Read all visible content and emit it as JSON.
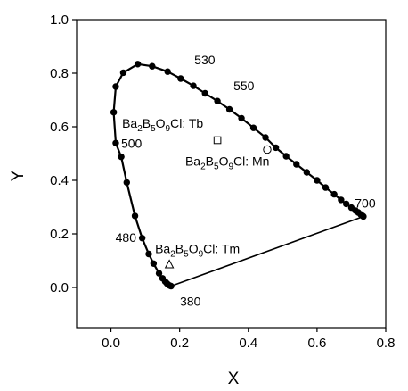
{
  "chart_data": {
    "type": "scatter",
    "title": "",
    "xlabel": "X",
    "ylabel": "Y",
    "xlim": [
      -0.1,
      0.8
    ],
    "ylim": [
      -0.15,
      1.0
    ],
    "xticks": [
      "0.0",
      "0.2",
      "0.4",
      "0.6",
      "0.8"
    ],
    "yticks": [
      "0.0",
      "0.2",
      "0.4",
      "0.6",
      "0.8",
      "1.0"
    ],
    "grid": false,
    "series": [
      {
        "kind": "locus",
        "marker": "filled-circle",
        "points": [
          [
            0.175,
            0.005
          ],
          [
            0.171,
            0.007
          ],
          [
            0.167,
            0.01
          ],
          [
            0.163,
            0.015
          ],
          [
            0.158,
            0.022
          ],
          [
            0.15,
            0.034
          ],
          [
            0.14,
            0.053
          ],
          [
            0.124,
            0.089
          ],
          [
            0.11,
            0.125
          ],
          [
            0.091,
            0.184
          ],
          [
            0.07,
            0.267
          ],
          [
            0.046,
            0.392
          ],
          [
            0.03,
            0.488
          ],
          [
            0.014,
            0.539
          ],
          [
            0.008,
            0.654
          ],
          [
            0.014,
            0.75
          ],
          [
            0.036,
            0.802
          ],
          [
            0.078,
            0.834
          ],
          [
            0.12,
            0.826
          ],
          [
            0.165,
            0.806
          ],
          [
            0.203,
            0.78
          ],
          [
            0.24,
            0.753
          ],
          [
            0.274,
            0.725
          ],
          [
            0.31,
            0.696
          ],
          [
            0.345,
            0.665
          ],
          [
            0.38,
            0.632
          ],
          [
            0.415,
            0.596
          ],
          [
            0.45,
            0.56
          ],
          [
            0.48,
            0.522
          ],
          [
            0.51,
            0.49
          ],
          [
            0.54,
            0.46
          ],
          [
            0.57,
            0.43
          ],
          [
            0.6,
            0.4
          ],
          [
            0.625,
            0.373
          ],
          [
            0.65,
            0.348
          ],
          [
            0.67,
            0.327
          ],
          [
            0.685,
            0.312
          ],
          [
            0.7,
            0.298
          ],
          [
            0.712,
            0.287
          ],
          [
            0.72,
            0.28
          ],
          [
            0.727,
            0.273
          ],
          [
            0.732,
            0.268
          ],
          [
            0.735,
            0.265
          ]
        ]
      },
      {
        "kind": "purple-line",
        "points": [
          [
            0.175,
            0.005
          ],
          [
            0.735,
            0.265
          ]
        ]
      }
    ],
    "wavelength_labels": [
      {
        "text": "380",
        "x": 0.175,
        "y": 0.005
      },
      {
        "text": "480",
        "x": 0.091,
        "y": 0.184
      },
      {
        "text": "500",
        "x": 0.014,
        "y": 0.539
      },
      {
        "text": "530",
        "x": 0.165,
        "y": 0.806
      },
      {
        "text": "550",
        "x": 0.31,
        "y": 0.696
      },
      {
        "text": "700",
        "x": 0.735,
        "y": 0.265
      }
    ],
    "samples": [
      {
        "base": "Ba",
        "sub1": "2",
        "mid": "B",
        "sub2": "5",
        "o": "O",
        "sub3": "9",
        "tail": "Cl: Tb",
        "marker": "square",
        "x": 0.31,
        "y": 0.55
      },
      {
        "base": "Ba",
        "sub1": "2",
        "mid": "B",
        "sub2": "5",
        "o": "O",
        "sub3": "9",
        "tail": "Cl: Mn",
        "marker": "circle",
        "x": 0.455,
        "y": 0.515
      },
      {
        "base": "Ba",
        "sub1": "2",
        "mid": "B",
        "sub2": "5",
        "o": "O",
        "sub3": "9",
        "tail": "Cl: Tm",
        "marker": "triangle",
        "x": 0.17,
        "y": 0.085
      }
    ]
  }
}
